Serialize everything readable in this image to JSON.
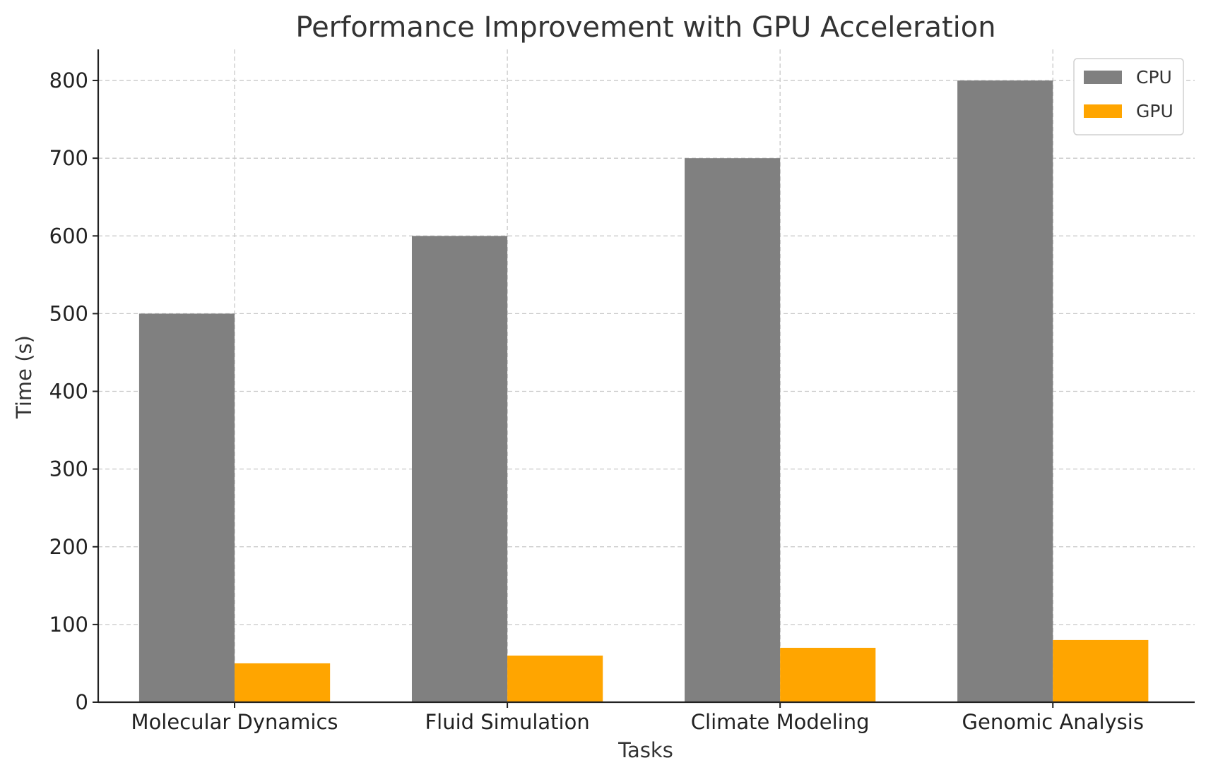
{
  "chart_data": {
    "type": "bar",
    "title": "Performance Improvement with GPU Acceleration",
    "xlabel": "Tasks",
    "ylabel": "Time (s)",
    "categories": [
      "Molecular Dynamics",
      "Fluid Simulation",
      "Climate Modeling",
      "Genomic Analysis"
    ],
    "series": [
      {
        "name": "CPU",
        "color": "#808080",
        "values": [
          500,
          600,
          700,
          800
        ]
      },
      {
        "name": "GPU",
        "color": "#FFA500",
        "values": [
          50,
          60,
          70,
          80
        ]
      }
    ],
    "ylim": [
      0,
      840
    ],
    "yticks": [
      0,
      100,
      200,
      300,
      400,
      500,
      600,
      700,
      800
    ],
    "grid": true,
    "legend_position": "top-right"
  }
}
